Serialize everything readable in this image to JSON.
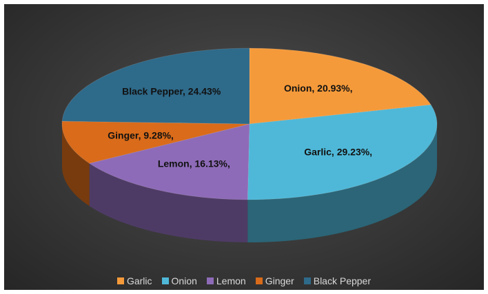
{
  "chart_data": {
    "type": "pie",
    "variant": "3d",
    "title": "",
    "categories": [
      "Garlic",
      "Onion",
      "Lemon",
      "Ginger",
      "Black Pepper"
    ],
    "values": [
      29.23,
      20.93,
      16.13,
      9.28,
      24.43
    ],
    "colors": [
      "#f28e2b",
      "#4fb3d9",
      "#8064a2",
      "#d96b1a",
      "#2e6a8a"
    ],
    "slices": [
      {
        "name": "Onion",
        "value": 20.93,
        "label": "Onion, 20.93%,",
        "color": "#f59a3a"
      },
      {
        "name": "Garlic",
        "value": 29.23,
        "label": "Garlic, 29.23%,",
        "color": "#4fb8d8"
      },
      {
        "name": "Lemon",
        "value": 16.13,
        "label": "Lemon, 16.13%,",
        "color": "#8e6bb8"
      },
      {
        "name": "Ginger",
        "value": 9.28,
        "label": "Ginger, 9.28%,",
        "color": "#d96b1a"
      },
      {
        "name": "Black Pepper",
        "value": 24.43,
        "label": "Black Pepper, 24.43%",
        "color": "#2e6a8a"
      }
    ],
    "legend": {
      "position": "bottom",
      "entries": [
        {
          "name": "Garlic",
          "color": "#f59a3a"
        },
        {
          "name": "Onion",
          "color": "#4fb8d8"
        },
        {
          "name": "Lemon",
          "color": "#8e6bb8"
        },
        {
          "name": "Ginger",
          "color": "#d96b1a"
        },
        {
          "name": "Black Pepper",
          "color": "#2e6a8a"
        }
      ]
    },
    "background_color": "#3a3a3a"
  }
}
